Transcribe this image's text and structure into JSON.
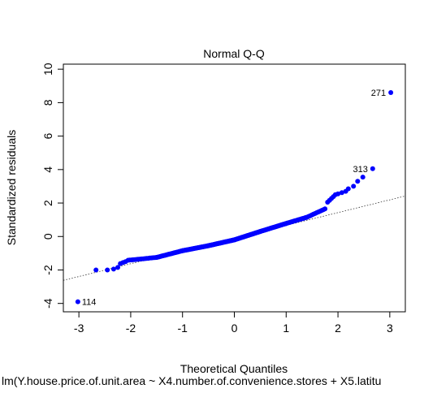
{
  "chart_data": {
    "type": "scatter",
    "title": "Normal Q-Q",
    "xlabel": "Theoretical Quantiles",
    "ylabel": "Standardized residuals",
    "subtitle": "lm(Y.house.price.of.unit.area ~ X4.number.of.convenience.stores + X5.latitu",
    "xlim": [
      -3.3,
      3.3
    ],
    "ylim": [
      -4.5,
      10.3
    ],
    "x_ticks": [
      -3,
      -2,
      -1,
      0,
      1,
      2,
      3
    ],
    "y_ticks": [
      -4,
      -2,
      0,
      2,
      4,
      6,
      8,
      10
    ],
    "grid": false,
    "reference_line": {
      "x": [
        -3.3,
        3.3
      ],
      "y": [
        -2.62,
        2.42
      ],
      "style": "dotted"
    },
    "point_color": "#0000ff",
    "labeled_points": [
      {
        "label": "114",
        "x": -3.02,
        "y": -3.9
      },
      {
        "label": "313",
        "x": 2.67,
        "y": 4.05
      },
      {
        "label": "271",
        "x": 3.02,
        "y": 8.6
      }
    ],
    "segments": [
      {
        "x0": -2.67,
        "x1": -2.67,
        "y0": -2.0,
        "y1": -2.0,
        "n": 1
      },
      {
        "x0": -2.45,
        "x1": -2.45,
        "y0": -2.0,
        "y1": -2.0,
        "n": 1
      },
      {
        "x0": -2.33,
        "x1": -2.25,
        "y0": -1.95,
        "y1": -1.85,
        "n": 2
      },
      {
        "x0": -2.2,
        "x1": -2.1,
        "y0": -1.62,
        "y1": -1.5,
        "n": 3
      },
      {
        "x0": -2.05,
        "x1": -1.5,
        "y0": -1.42,
        "y1": -1.25,
        "n": 18
      },
      {
        "x0": -1.5,
        "x1": -1.0,
        "y0": -1.25,
        "y1": -0.85,
        "n": 30
      },
      {
        "x0": -1.0,
        "x1": -0.5,
        "y0": -0.85,
        "y1": -0.55,
        "n": 40
      },
      {
        "x0": -0.5,
        "x1": 0.0,
        "y0": -0.55,
        "y1": -0.2,
        "n": 48
      },
      {
        "x0": 0.0,
        "x1": 0.5,
        "y0": -0.2,
        "y1": 0.3,
        "n": 48
      },
      {
        "x0": 0.5,
        "x1": 1.0,
        "y0": 0.3,
        "y1": 0.78,
        "n": 38
      },
      {
        "x0": 1.0,
        "x1": 1.4,
        "y0": 0.78,
        "y1": 1.15,
        "n": 22
      },
      {
        "x0": 1.4,
        "x1": 1.75,
        "y0": 1.15,
        "y1": 1.65,
        "n": 12
      },
      {
        "x0": 1.8,
        "x1": 1.95,
        "y0": 2.05,
        "y1": 2.5,
        "n": 5
      },
      {
        "x0": 2.0,
        "x1": 2.15,
        "y0": 2.55,
        "y1": 2.7,
        "n": 3
      },
      {
        "x0": 2.2,
        "x1": 2.3,
        "y0": 2.85,
        "y1": 3.0,
        "n": 2
      },
      {
        "x0": 2.38,
        "x1": 2.38,
        "y0": 3.3,
        "y1": 3.3,
        "n": 1
      },
      {
        "x0": 2.48,
        "x1": 2.48,
        "y0": 3.55,
        "y1": 3.55,
        "n": 1
      }
    ]
  }
}
